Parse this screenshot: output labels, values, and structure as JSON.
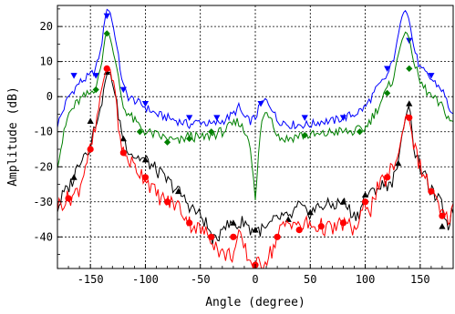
{
  "chart_data": {
    "type": "line",
    "title": "",
    "xlabel": "Angle (degree)",
    "ylabel": "Amplitude (dB)",
    "xlim": [
      -180,
      180
    ],
    "ylim": [
      -49,
      26
    ],
    "xticks": [
      -150,
      -100,
      -50,
      0,
      50,
      100,
      150
    ],
    "yticks": [
      -40,
      -30,
      -20,
      -10,
      0,
      10,
      20
    ],
    "grid": true,
    "legend": "none",
    "series": [
      {
        "color": "#0000ff",
        "marker": "triangle-down",
        "x": [
          -180,
          -170,
          -160,
          -150,
          -145,
          -140,
          -137,
          -135,
          -132,
          -128,
          -124,
          -120,
          -116,
          -110,
          -100,
          -90,
          -80,
          -70,
          -60,
          -50,
          -40,
          -30,
          -20,
          -15,
          -10,
          -5,
          0,
          5,
          10,
          15,
          20,
          25,
          30,
          40,
          50,
          60,
          70,
          80,
          90,
          100,
          110,
          120,
          125,
          128,
          131,
          134,
          137,
          140,
          143,
          146,
          150,
          160,
          170,
          180
        ],
        "y": [
          -8,
          0,
          4,
          6,
          8,
          14,
          22,
          25,
          24,
          18,
          10,
          3,
          0,
          -1,
          -3,
          -5,
          -6,
          -7,
          -8,
          -7,
          -8,
          -7,
          -5,
          -3,
          -6,
          -7,
          -6,
          -2,
          -1,
          -3,
          -7,
          -7,
          -8,
          -8,
          -8,
          -7,
          -7,
          -6,
          -5,
          -3,
          2,
          6,
          10,
          14,
          19,
          24,
          25,
          22,
          16,
          12,
          8,
          5,
          2,
          -6
        ],
        "markers_x": [
          -165,
          -145,
          -135,
          -120,
          -100,
          -60,
          -35,
          5,
          45,
          80,
          120,
          140,
          160
        ],
        "markers_y": [
          6,
          6,
          23,
          2,
          -2,
          -6,
          -6,
          -2,
          -6,
          -6,
          8,
          16,
          6
        ]
      },
      {
        "color": "#008000",
        "marker": "diamond",
        "x": [
          -180,
          -170,
          -160,
          -150,
          -145,
          -140,
          -137,
          -135,
          -132,
          -128,
          -124,
          -120,
          -110,
          -100,
          -90,
          -80,
          -70,
          -60,
          -50,
          -40,
          -30,
          -20,
          -15,
          -10,
          -5,
          0,
          5,
          10,
          15,
          20,
          25,
          30,
          40,
          50,
          60,
          70,
          80,
          90,
          100,
          110,
          120,
          125,
          128,
          131,
          134,
          137,
          140,
          143,
          146,
          150,
          160,
          170,
          180
        ],
        "y": [
          -19,
          -5,
          -1,
          1,
          3,
          9,
          16,
          19,
          17,
          11,
          4,
          -3,
          -7,
          -10,
          -11,
          -12,
          -13,
          -11,
          -12,
          -11,
          -10,
          -8,
          -7,
          -10,
          -12,
          -30,
          -8,
          -4,
          -6,
          -11,
          -12,
          -12,
          -11,
          -11,
          -11,
          -10,
          -10,
          -10,
          -9,
          -4,
          2,
          5,
          9,
          13,
          17,
          19,
          16,
          12,
          8,
          4,
          0,
          -3,
          -8
        ],
        "markers_x": [
          -145,
          -135,
          -105,
          -80,
          -60,
          -40,
          45,
          95,
          120,
          140
        ],
        "markers_y": [
          2,
          18,
          -10,
          -13,
          -12,
          -10,
          -11,
          -10,
          1,
          8
        ]
      },
      {
        "color": "#000000",
        "marker": "triangle-up",
        "x": [
          -180,
          -175,
          -170,
          -165,
          -160,
          -155,
          -150,
          -145,
          -140,
          -137,
          -135,
          -132,
          -128,
          -124,
          -120,
          -115,
          -110,
          -100,
          -90,
          -80,
          -70,
          -60,
          -50,
          -45,
          -40,
          -35,
          -30,
          -25,
          -20,
          -15,
          -10,
          -5,
          0,
          5,
          10,
          15,
          20,
          25,
          30,
          35,
          40,
          45,
          50,
          60,
          70,
          80,
          90,
          95,
          100,
          105,
          110,
          120,
          125,
          130,
          134,
          137,
          140,
          145,
          150,
          160,
          170,
          175,
          180
        ],
        "y": [
          -32,
          -28,
          -26,
          -23,
          -18,
          -16,
          -14,
          -7,
          -3,
          4,
          6,
          7,
          1,
          -6,
          -12,
          -15,
          -17,
          -18,
          -21,
          -24,
          -27,
          -31,
          -34,
          -36,
          -40,
          -42,
          -36,
          -37,
          -36,
          -37,
          -35,
          -38,
          -38,
          -38,
          -38,
          -36,
          -35,
          -34,
          -35,
          -33,
          -31,
          -33,
          -33,
          -31,
          -31,
          -30,
          -34,
          -33,
          -28,
          -28,
          -26,
          -25,
          -24,
          -19,
          -10,
          -5,
          -2,
          -16,
          -20,
          -27,
          -31,
          -37,
          -32
        ],
        "markers_x": [
          -165,
          -150,
          -135,
          -120,
          -100,
          -70,
          -20,
          0,
          30,
          50,
          80,
          100,
          130,
          140,
          170
        ],
        "markers_y": [
          -23,
          -7,
          7,
          -12,
          -18,
          -27,
          -36,
          -38,
          -35,
          -33,
          -30,
          -28,
          -19,
          -2,
          -37
        ]
      },
      {
        "color": "#ff0000",
        "marker": "circle",
        "x": [
          -180,
          -175,
          -170,
          -165,
          -160,
          -155,
          -150,
          -145,
          -140,
          -137,
          -135,
          -132,
          -128,
          -124,
          -120,
          -115,
          -110,
          -100,
          -90,
          -80,
          -70,
          -60,
          -50,
          -45,
          -40,
          -35,
          -30,
          -25,
          -20,
          -15,
          -10,
          -5,
          0,
          5,
          10,
          15,
          20,
          25,
          30,
          35,
          40,
          45,
          50,
          60,
          70,
          80,
          90,
          95,
          100,
          105,
          110,
          120,
          125,
          130,
          134,
          137,
          140,
          145,
          150,
          160,
          170,
          175,
          180
        ],
        "y": [
          -31,
          -30,
          -29,
          -28,
          -26,
          -20,
          -15,
          -9,
          2,
          6,
          8,
          7,
          3,
          -10,
          -16,
          -18,
          -20,
          -23,
          -28,
          -30,
          -31,
          -36,
          -38,
          -39,
          -40,
          -43,
          -45,
          -45,
          -45,
          -40,
          -43,
          -47,
          -48,
          -48,
          -46,
          -44,
          -40,
          -37,
          -36,
          -35,
          -38,
          -36,
          -37,
          -37,
          -38,
          -36,
          -38,
          -36,
          -30,
          -32,
          -27,
          -23,
          -20,
          -17,
          -10,
          -5,
          -6,
          -15,
          -20,
          -27,
          -34,
          -35,
          -32
        ],
        "markers_x": [
          -170,
          -150,
          -135,
          -120,
          -100,
          -80,
          -60,
          -40,
          -20,
          0,
          20,
          40,
          60,
          80,
          100,
          120,
          140,
          160,
          170
        ],
        "markers_y": [
          -29,
          -15,
          8,
          -16,
          -23,
          -30,
          -36,
          -40,
          -40,
          -48,
          -40,
          -38,
          -37,
          -36,
          -30,
          -23,
          -6,
          -27,
          -34
        ]
      }
    ]
  }
}
